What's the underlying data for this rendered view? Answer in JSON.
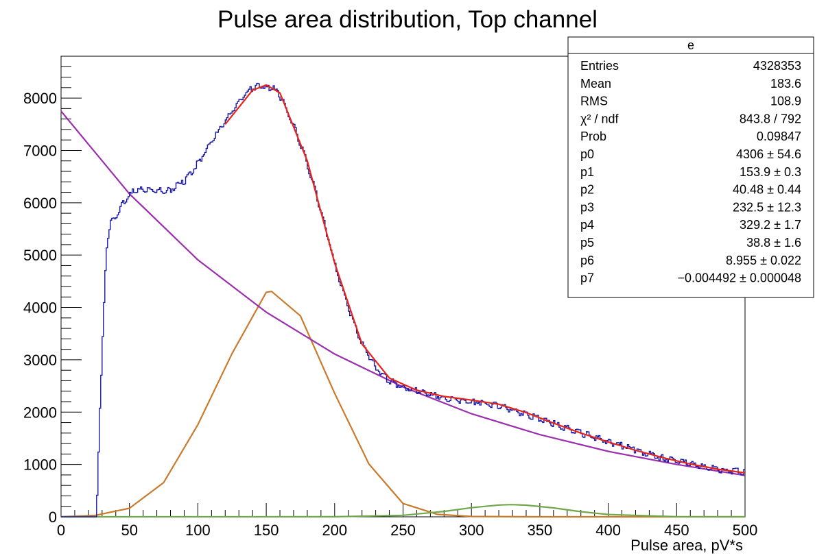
{
  "title": "Pulse area distribution, Top channel",
  "chart_data": {
    "type": "line",
    "title": "Pulse area distribution, Top channel",
    "xlabel": "Pulse area, pV*s",
    "ylabel": "",
    "xlim": [
      0,
      500
    ],
    "ylim": [
      0,
      8800
    ],
    "x_ticks": [
      0,
      50,
      100,
      150,
      200,
      250,
      300,
      350,
      400,
      450,
      500
    ],
    "y_ticks": [
      0,
      1000,
      2000,
      3000,
      4000,
      5000,
      6000,
      7000,
      8000
    ],
    "x_tick_labels": [
      "0",
      "50",
      "100",
      "150",
      "200",
      "250",
      "300",
      "350",
      "400",
      "450",
      "500"
    ],
    "y_tick_labels": [
      "0",
      "1000",
      "2000",
      "3000",
      "4000",
      "5000",
      "6000",
      "7000",
      "8000"
    ],
    "grid": false,
    "legend": "none",
    "series": [
      {
        "color": "#1a1aa6",
        "style": "histogram",
        "x": [
          0,
          20,
          26,
          28,
          30,
          32,
          34,
          36,
          40,
          45,
          50,
          55,
          60,
          70,
          80,
          90,
          100,
          110,
          120,
          130,
          140,
          145,
          150,
          155,
          160,
          170,
          180,
          190,
          200,
          210,
          220,
          230,
          240,
          250,
          260,
          270,
          280,
          290,
          300,
          320,
          340,
          360,
          380,
          400,
          420,
          440,
          460,
          480,
          500
        ],
        "values": [
          0,
          0,
          0,
          1650,
          3100,
          4500,
          5300,
          5600,
          5700,
          6000,
          6150,
          6250,
          6250,
          6220,
          6250,
          6400,
          6750,
          7150,
          7550,
          7950,
          8200,
          8250,
          8200,
          8200,
          8050,
          7500,
          6750,
          5850,
          4850,
          4000,
          3300,
          2850,
          2600,
          2480,
          2400,
          2330,
          2280,
          2240,
          2210,
          2120,
          1960,
          1780,
          1600,
          1440,
          1270,
          1130,
          1010,
          910,
          850
        ]
      },
      {
        "color": "#e8241b",
        "style": "total fit",
        "x": [
          20,
          30,
          40,
          50,
          60,
          80,
          100,
          120,
          140,
          150,
          160,
          180,
          200,
          220,
          240,
          260,
          280,
          300,
          320,
          340,
          360,
          380,
          400,
          420,
          440,
          460,
          480,
          500
        ],
        "values": [
          0,
          0,
          0,
          0,
          0,
          0,
          0,
          7500,
          8150,
          8250,
          8100,
          6800,
          4850,
          3300,
          2650,
          2420,
          2300,
          2230,
          2150,
          1990,
          1790,
          1600,
          1430,
          1270,
          1130,
          1010,
          910,
          840
        ]
      },
      {
        "color": "#9b2fae",
        "style": "exponential component",
        "function": "exp(8.955 - 0.004492*x)",
        "x": [
          0,
          50,
          100,
          150,
          200,
          250,
          300,
          350,
          400,
          450,
          500
        ],
        "values": [
          7750,
          6170,
          4910,
          3910,
          3110,
          2480,
          1970,
          1570,
          1250,
          1000,
          790
        ]
      },
      {
        "color": "#c97a2c",
        "style": "gaussian component",
        "function": "4306*exp(-0.5*((x-153.9)/40.48)^2)",
        "x": [
          0,
          25,
          50,
          75,
          100,
          125,
          150,
          153.9,
          175,
          200,
          225,
          250,
          275,
          300,
          350,
          400,
          450,
          500
        ],
        "values": [
          3,
          27,
          164,
          653,
          1760,
          3120,
          4290,
          4306,
          3840,
          2360,
          1010,
          254,
          47,
          6,
          0,
          0,
          0,
          0
        ]
      },
      {
        "color": "#6fa84a",
        "style": "gaussian component",
        "function": "232.5*exp(-0.5*((x-329.2)/38.8)^2)",
        "x": [
          0,
          200,
          250,
          280,
          300,
          320,
          329.2,
          340,
          360,
          380,
          400,
          450,
          500
        ],
        "values": [
          0,
          1,
          29,
          104,
          174,
          225,
          232.5,
          223,
          170,
          98,
          44,
          1,
          0
        ]
      }
    ],
    "stats_box": {
      "title": "e",
      "rows": [
        {
          "label": "Entries",
          "value": "4328353"
        },
        {
          "label": "Mean",
          "value": "183.6"
        },
        {
          "label": "RMS",
          "value": "108.9"
        },
        {
          "label": "χ² / ndf",
          "value": "843.8 / 792"
        },
        {
          "label": "Prob",
          "value": "0.09847"
        },
        {
          "label": "p0",
          "value": "4306 ± 54.6"
        },
        {
          "label": "p1",
          "value": "153.9 ± 0.3"
        },
        {
          "label": "p2",
          "value": "40.48 ± 0.44"
        },
        {
          "label": "p3",
          "value": "232.5 ± 12.3"
        },
        {
          "label": "p4",
          "value": "329.2 ± 1.7"
        },
        {
          "label": "p5",
          "value": "38.8 ± 1.6"
        },
        {
          "label": "p6",
          "value": "8.955 ± 0.022"
        },
        {
          "label": "p7",
          "value": "−0.004492 ± 0.000048"
        }
      ]
    }
  }
}
